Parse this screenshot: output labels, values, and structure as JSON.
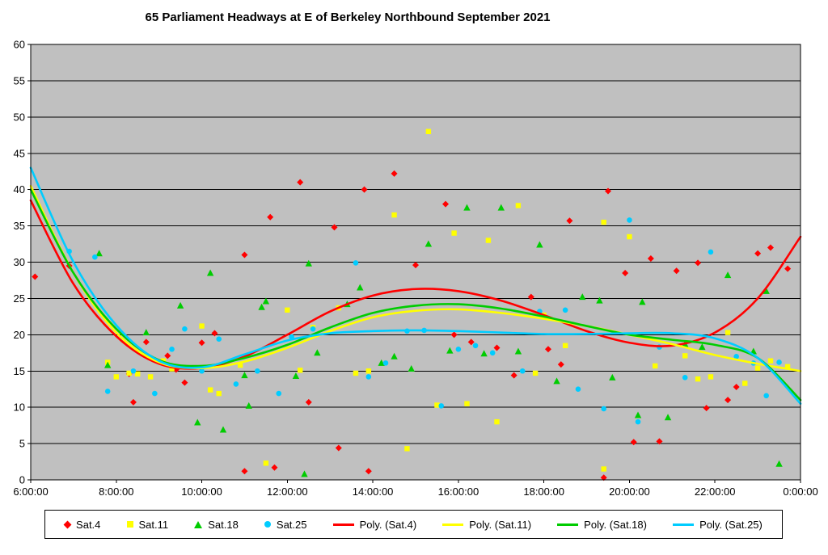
{
  "chart_data": {
    "type": "scatter",
    "title": "65 Parliament Headways at E of Berkeley Northbound September 2021",
    "xlabel": "",
    "ylabel": "",
    "legend_position": "bottom",
    "grid": "horizontal",
    "plot_background": "#C0C0C0",
    "x_axis": {
      "min": 6,
      "max": 24,
      "ticks": [
        6,
        8,
        10,
        12,
        14,
        16,
        18,
        20,
        22,
        24
      ],
      "tick_labels": [
        "6:00:00",
        "8:00:00",
        "10:00:00",
        "12:00:00",
        "14:00:00",
        "16:00:00",
        "18:00:00",
        "20:00:00",
        "22:00:00",
        "0:00:00"
      ]
    },
    "y_axis": {
      "min": 0,
      "max": 60,
      "step": 5,
      "ticks": [
        0,
        5,
        10,
        15,
        20,
        25,
        30,
        35,
        40,
        45,
        50,
        55,
        60
      ]
    },
    "series": [
      {
        "name": "Sat.4",
        "marker": "diamond",
        "color": "#FF0000",
        "points": [
          [
            6.1,
            28
          ],
          [
            6.9,
            29.5
          ],
          [
            8.3,
            14.6
          ],
          [
            8.4,
            10.7
          ],
          [
            8.7,
            19
          ],
          [
            9.2,
            17.1
          ],
          [
            9.4,
            15.2
          ],
          [
            9.6,
            13.4
          ],
          [
            10.0,
            18.9
          ],
          [
            10.3,
            20.2
          ],
          [
            11.0,
            31
          ],
          [
            11.0,
            1.2
          ],
          [
            11.6,
            36.2
          ],
          [
            11.7,
            1.7
          ],
          [
            12.3,
            41
          ],
          [
            12.5,
            10.7
          ],
          [
            13.1,
            34.8
          ],
          [
            13.2,
            4.4
          ],
          [
            13.8,
            40
          ],
          [
            13.9,
            1.2
          ],
          [
            14.5,
            42.2
          ],
          [
            15.0,
            29.6
          ],
          [
            15.7,
            38
          ],
          [
            15.9,
            20
          ],
          [
            16.3,
            19
          ],
          [
            16.9,
            18.2
          ],
          [
            17.3,
            14.4
          ],
          [
            17.7,
            25.2
          ],
          [
            18.1,
            18
          ],
          [
            18.4,
            15.9
          ],
          [
            18.6,
            35.7
          ],
          [
            19.4,
            0.3
          ],
          [
            19.5,
            39.8
          ],
          [
            19.9,
            28.5
          ],
          [
            20.1,
            5.2
          ],
          [
            20.5,
            30.5
          ],
          [
            20.7,
            5.3
          ],
          [
            21.1,
            28.8
          ],
          [
            21.6,
            29.9
          ],
          [
            21.8,
            9.9
          ],
          [
            22.3,
            11
          ],
          [
            22.5,
            12.8
          ],
          [
            23.0,
            31.2
          ],
          [
            23.3,
            32
          ],
          [
            23.7,
            29.1
          ]
        ]
      },
      {
        "name": "Sat.11",
        "marker": "square",
        "color": "#FFFF00",
        "points": [
          [
            7.8,
            16.2
          ],
          [
            8.0,
            14.2
          ],
          [
            8.3,
            14.7
          ],
          [
            8.5,
            14.6
          ],
          [
            8.8,
            14.2
          ],
          [
            9.1,
            16.4
          ],
          [
            9.3,
            15.3
          ],
          [
            10.0,
            21.2
          ],
          [
            10.2,
            12.4
          ],
          [
            10.4,
            11.9
          ],
          [
            10.9,
            15.8
          ],
          [
            11.5,
            2.3
          ],
          [
            12.0,
            23.4
          ],
          [
            12.3,
            15.1
          ],
          [
            12.6,
            21
          ],
          [
            13.2,
            23.7
          ],
          [
            13.6,
            14.7
          ],
          [
            13.9,
            15
          ],
          [
            14.5,
            36.5
          ],
          [
            14.8,
            4.3
          ],
          [
            15.3,
            48
          ],
          [
            15.5,
            10.3
          ],
          [
            15.9,
            34
          ],
          [
            16.2,
            10.5
          ],
          [
            16.7,
            33
          ],
          [
            16.9,
            8
          ],
          [
            17.4,
            37.8
          ],
          [
            17.8,
            14.7
          ],
          [
            18.0,
            22.7
          ],
          [
            18.5,
            18.5
          ],
          [
            19.4,
            1.5
          ],
          [
            19.4,
            35.5
          ],
          [
            20.0,
            33.5
          ],
          [
            20.6,
            15.7
          ],
          [
            21.3,
            17.1
          ],
          [
            21.6,
            13.9
          ],
          [
            21.9,
            14.2
          ],
          [
            22.3,
            20.3
          ],
          [
            22.7,
            13.3
          ],
          [
            23.0,
            15.4
          ],
          [
            23.3,
            16.4
          ],
          [
            23.7,
            15.6
          ]
        ]
      },
      {
        "name": "Sat.18",
        "marker": "triangle",
        "color": "#00CC00",
        "points": [
          [
            7.6,
            31.2
          ],
          [
            7.8,
            15.8
          ],
          [
            8.7,
            20.3
          ],
          [
            9.5,
            24
          ],
          [
            9.9,
            7.9
          ],
          [
            10.2,
            28.5
          ],
          [
            10.5,
            6.9
          ],
          [
            11.0,
            14.4
          ],
          [
            11.1,
            10.2
          ],
          [
            11.4,
            23.8
          ],
          [
            11.5,
            24.6
          ],
          [
            12.2,
            14.3
          ],
          [
            12.4,
            0.8
          ],
          [
            12.5,
            29.8
          ],
          [
            12.7,
            17.5
          ],
          [
            13.4,
            24.2
          ],
          [
            13.7,
            26.5
          ],
          [
            14.2,
            16.1
          ],
          [
            14.5,
            17
          ],
          [
            14.9,
            15.3
          ],
          [
            15.3,
            32.5
          ],
          [
            15.8,
            17.8
          ],
          [
            16.2,
            37.5
          ],
          [
            16.6,
            17.4
          ],
          [
            17.0,
            37.5
          ],
          [
            17.4,
            17.7
          ],
          [
            17.9,
            32.4
          ],
          [
            18.3,
            13.6
          ],
          [
            18.9,
            25.2
          ],
          [
            19.3,
            24.7
          ],
          [
            19.6,
            14.1
          ],
          [
            20.2,
            8.9
          ],
          [
            20.3,
            24.5
          ],
          [
            20.9,
            8.6
          ],
          [
            21.3,
            18.7
          ],
          [
            21.7,
            18.3
          ],
          [
            22.3,
            28.2
          ],
          [
            22.9,
            17.7
          ],
          [
            23.2,
            26
          ],
          [
            23.5,
            2.2
          ]
        ]
      },
      {
        "name": "Sat.25",
        "marker": "circle",
        "color": "#00CCFF",
        "points": [
          [
            6.9,
            31.5
          ],
          [
            7.5,
            30.7
          ],
          [
            7.8,
            12.2
          ],
          [
            8.4,
            15
          ],
          [
            8.9,
            11.9
          ],
          [
            9.3,
            18
          ],
          [
            9.6,
            20.8
          ],
          [
            10.0,
            15
          ],
          [
            10.4,
            19.4
          ],
          [
            10.8,
            13.2
          ],
          [
            11.3,
            15
          ],
          [
            11.8,
            11.9
          ],
          [
            12.1,
            19.7
          ],
          [
            12.6,
            20.8
          ],
          [
            13.6,
            29.9
          ],
          [
            13.9,
            14.2
          ],
          [
            14.3,
            16.1
          ],
          [
            14.8,
            20.5
          ],
          [
            15.2,
            20.6
          ],
          [
            15.6,
            10.2
          ],
          [
            16.0,
            18
          ],
          [
            16.4,
            18.5
          ],
          [
            16.8,
            17.5
          ],
          [
            17.5,
            15
          ],
          [
            17.9,
            23.2
          ],
          [
            18.5,
            23.4
          ],
          [
            18.8,
            12.5
          ],
          [
            19.4,
            9.8
          ],
          [
            20.0,
            35.8
          ],
          [
            20.2,
            8
          ],
          [
            20.7,
            18.3
          ],
          [
            21.3,
            14.1
          ],
          [
            21.9,
            31.4
          ],
          [
            22.5,
            17
          ],
          [
            22.9,
            16.1
          ],
          [
            23.2,
            11.6
          ],
          [
            23.5,
            16.2
          ]
        ]
      }
    ],
    "trendlines": {
      "x": [
        6,
        7,
        8,
        9,
        10,
        11,
        12,
        13,
        14,
        15,
        16,
        17,
        18,
        19,
        20,
        21,
        22,
        23,
        24
      ],
      "lines": [
        {
          "name": "Poly. (Sat.4)",
          "color": "#FF0000",
          "values": [
            38.5,
            27.0,
            19.8,
            16.0,
            15.4,
            17.0,
            20.0,
            23.2,
            25.4,
            26.3,
            26.0,
            24.7,
            22.7,
            20.5,
            18.9,
            18.5,
            20.3,
            25.0,
            33.5
          ]
        },
        {
          "name": "Poly. (Sat.11)",
          "color": "#FFFF00",
          "values": [
            40.5,
            28.5,
            20.3,
            16.2,
            15.4,
            16.3,
            18.2,
            20.5,
            22.4,
            23.3,
            23.5,
            23.0,
            22.2,
            21.2,
            20.0,
            18.7,
            17.2,
            16.0,
            15.0
          ]
        },
        {
          "name": "Poly. (Sat.18)",
          "color": "#00CC00",
          "values": [
            40.0,
            28.5,
            20.8,
            16.5,
            15.7,
            16.8,
            18.6,
            21.0,
            23.0,
            24.0,
            24.2,
            23.6,
            22.5,
            21.2,
            20.0,
            19.3,
            18.6,
            16.8,
            11.0
          ]
        },
        {
          "name": "Poly. (Sat.25)",
          "color": "#00CCFF",
          "values": [
            43.0,
            30.0,
            21.3,
            16.4,
            15.5,
            17.3,
            19.2,
            20.2,
            20.5,
            20.6,
            20.5,
            20.3,
            20.1,
            20.1,
            20.2,
            20.2,
            19.5,
            16.8,
            10.5
          ]
        }
      ]
    }
  }
}
